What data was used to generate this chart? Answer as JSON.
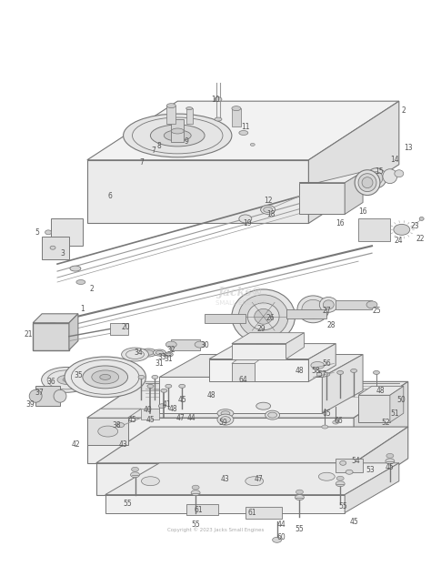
{
  "background_color": "#ffffff",
  "lc": "#999999",
  "dc": "#777777",
  "fc_light": "#f0f0f0",
  "fc_mid": "#e0e0e0",
  "fc_dark": "#d0d0d0",
  "fc_darker": "#c0c0c0",
  "text_color": "#555555",
  "watermark_color": "#cccccc",
  "copyright": "Copyright © 2023 Jacks Small Engines",
  "figw": 4.74,
  "figh": 6.22,
  "dpi": 100
}
